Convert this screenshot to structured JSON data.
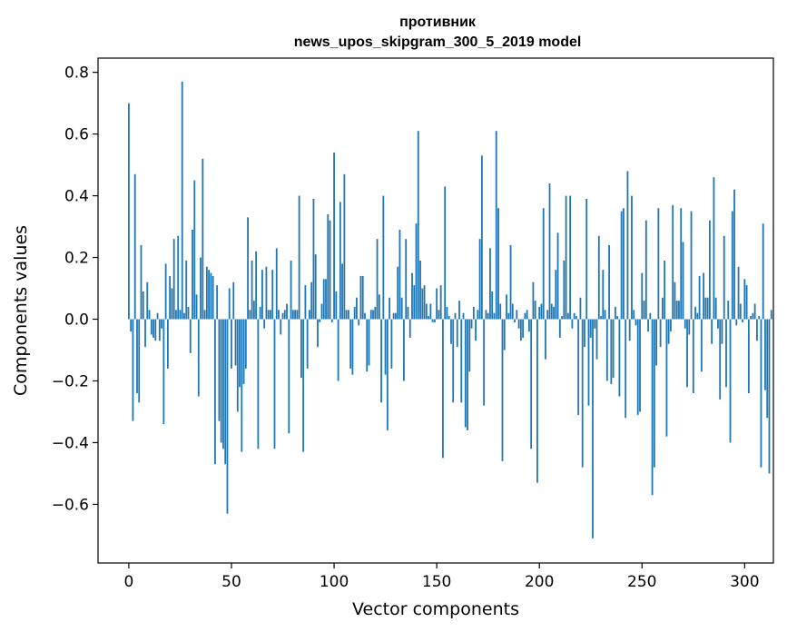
{
  "chart_data": {
    "type": "bar",
    "title_line1": "противник",
    "title_line2": "news_upos_skipgram_300_5_2019 model",
    "xlabel": "Vector components",
    "ylabel": "Components values",
    "xlim": [
      -15,
      314
    ],
    "ylim": [
      -0.79,
      0.846
    ],
    "xticks": [
      0,
      50,
      100,
      150,
      200,
      250,
      300
    ],
    "yticks": [
      -0.6,
      -0.4,
      -0.2,
      0.0,
      0.2,
      0.4,
      0.6,
      0.8
    ],
    "ytick_labels": [
      "−0.6",
      "−0.4",
      "−0.2",
      "0.0",
      "0.2",
      "0.4",
      "0.6",
      "0.8"
    ],
    "bar_color": "#1f77b4",
    "values": [
      0.7,
      -0.04,
      -0.33,
      0.47,
      -0.24,
      -0.27,
      0.24,
      0.09,
      -0.09,
      0.12,
      0.03,
      -0.05,
      -0.06,
      -0.07,
      0.02,
      -0.07,
      -0.03,
      -0.34,
      0.18,
      -0.16,
      0.14,
      0.1,
      0.26,
      0.03,
      0.27,
      0.03,
      0.77,
      0.02,
      0.19,
      0.04,
      -0.11,
      0.29,
      0.45,
      0.08,
      -0.25,
      0.2,
      0.52,
      0.03,
      0.17,
      0.16,
      0.15,
      0.14,
      -0.47,
      0.11,
      -0.33,
      -0.4,
      -0.42,
      -0.47,
      -0.63,
      0.1,
      -0.16,
      0.12,
      -0.15,
      -0.3,
      -0.22,
      -0.43,
      -0.21,
      -0.16,
      0.33,
      0.03,
      0.19,
      0.06,
      0.22,
      -0.42,
      0.04,
      0.16,
      -0.03,
      0.17,
      0.03,
      0.03,
      0.16,
      -0.42,
      0.23,
      0.03,
      -0.05,
      0.02,
      0.03,
      0.05,
      -0.37,
      0.19,
      0.03,
      0.03,
      0.03,
      0.4,
      -0.19,
      -0.43,
      0.11,
      -0.16,
      0.03,
      0.12,
      0.39,
      0.21,
      -0.09,
      -0.01,
      0.05,
      0.13,
      0.13,
      0.34,
      0.32,
      -0.01,
      0.54,
      0.09,
      -0.2,
      0.38,
      0.18,
      0.47,
      0.03,
      0.03,
      -0.16,
      -0.18,
      0.04,
      0.07,
      -0.02,
      0.14,
      0.14,
      0.02,
      -0.17,
      -0.15,
      0.03,
      0.03,
      0.04,
      0.26,
      0.08,
      -0.27,
      0.4,
      -0.18,
      -0.36,
      0.07,
      -0.16,
      0.02,
      0.02,
      0.17,
      0.29,
      0.07,
      -0.2,
      0.26,
      0.04,
      -0.06,
      0.15,
      0.11,
      0.31,
      0.61,
      0.19,
      0.1,
      0.11,
      0.05,
      0.01,
      0.05,
      -0.01,
      -0.01,
      0.1,
      0.03,
      0.11,
      -0.45,
      0.43,
      0.04,
      0.01,
      -0.08,
      -0.27,
      0.02,
      -0.09,
      0.06,
      -0.27,
      0.02,
      -0.35,
      -0.36,
      -0.17,
      -0.03,
      0.04,
      -0.07,
      0.03,
      0.26,
      0.53,
      -0.28,
      0.03,
      0.02,
      0.23,
      0.09,
      0.02,
      0.61,
      0.36,
      0.05,
      -0.46,
      -0.1,
      0.08,
      0.02,
      0.24,
      0.05,
      -0.01,
      0.03,
      -0.03,
      -0.07,
      -0.06,
      0.02,
      0.03,
      -0.04,
      -0.42,
      0.12,
      0.06,
      -0.53,
      0.04,
      0.05,
      0.36,
      -0.13,
      0.03,
      0.44,
      0.05,
      0.04,
      0.16,
      0.28,
      -0.06,
      0.01,
      0.19,
      0.4,
      0.02,
      0.4,
      -0.03,
      0.02,
      0.01,
      -0.31,
      0.07,
      -0.48,
      -0.09,
      0.39,
      -0.28,
      -0.06,
      -0.71,
      -0.03,
      -0.13,
      0.27,
      0.01,
      0.16,
      0.03,
      -0.2,
      0.24,
      -0.21,
      -0.19,
      0.04,
      0.01,
      -0.25,
      0.35,
      0.36,
      -0.32,
      0.48,
      -0.07,
      0.4,
      0.03,
      -0.02,
      -0.31,
      -0.3,
      0.15,
      0.06,
      0.32,
      -0.04,
      0.02,
      -0.57,
      -0.48,
      -0.15,
      0.36,
      -0.09,
      0.07,
      0.19,
      -0.38,
      -0.08,
      -0.04,
      0.37,
      0.12,
      0.06,
      0.06,
      0.36,
      0.25,
      -0.03,
      -0.22,
      -0.05,
      0.35,
      -0.24,
      0.04,
      0.02,
      0.14,
      -0.17,
      0.15,
      0.07,
      0.07,
      0.32,
      -0.08,
      0.46,
      0.07,
      -0.03,
      -0.26,
      -0.08,
      0.27,
      -0.22,
      0.06,
      -0.4,
      0.35,
      0.42,
      -0.02,
      0.17,
      0.05,
      -0.01,
      0.13,
      0.11,
      -0.24,
      0.01,
      0.02,
      0.05,
      -0.07,
      0.01,
      -0.48,
      0.31,
      -0.23,
      -0.32,
      -0.5,
      0.03
    ]
  }
}
